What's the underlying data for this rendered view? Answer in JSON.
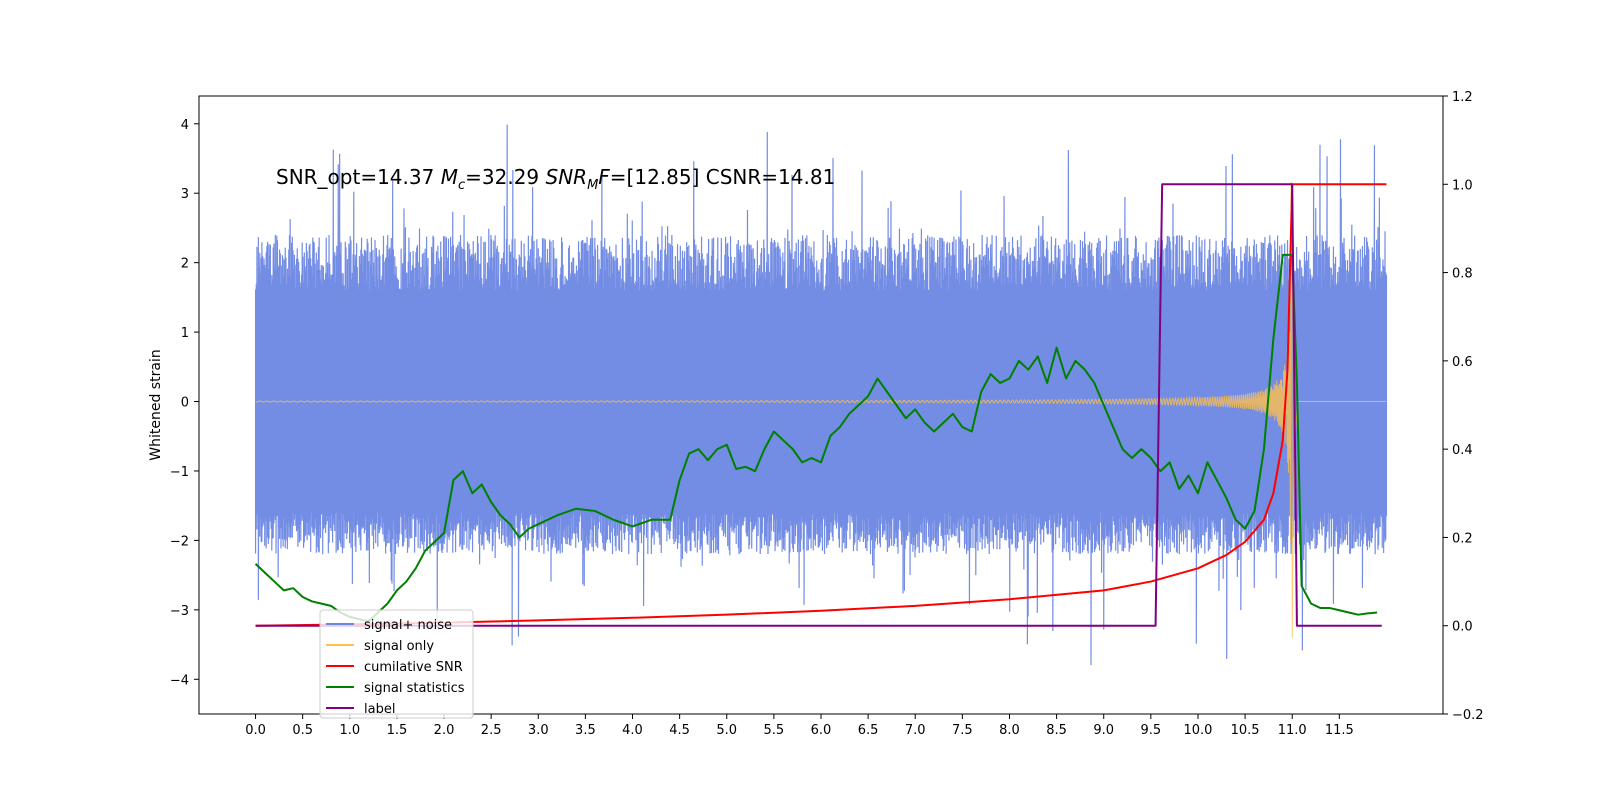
{
  "chart_data": {
    "type": "line",
    "title": "",
    "annotation": {
      "parts": [
        {
          "text": "SNR_opt=14.37 ",
          "italic": false
        },
        {
          "text": "M",
          "italic": true
        },
        {
          "text": "c",
          "italic": true,
          "sub": true
        },
        {
          "text": "=32.29  ",
          "italic": false
        },
        {
          "text": "SNR",
          "italic": true
        },
        {
          "text": "M",
          "italic": true,
          "sub": true
        },
        {
          "text": "F",
          "italic": true
        },
        {
          "text": "=[12.85] CSNR=14.81",
          "italic": false
        }
      ]
    },
    "xlabel": "",
    "ylabel": "Whitened strain",
    "xlim": [
      -0.6,
      12.6
    ],
    "ylim": [
      -4.5,
      4.4
    ],
    "y2lim": [
      -0.2,
      1.2
    ],
    "x_ticks": [
      "0.0",
      "0.5",
      "1.0",
      "1.5",
      "2.0",
      "2.5",
      "3.0",
      "3.5",
      "4.0",
      "4.5",
      "5.0",
      "5.5",
      "6.0",
      "6.5",
      "7.0",
      "7.5",
      "8.0",
      "8.5",
      "9.0",
      "9.5",
      "10.0",
      "10.5",
      "11.0",
      "11.5"
    ],
    "y_ticks": [
      "4",
      "3",
      "2",
      "1",
      "0",
      "−1",
      "−2",
      "−3",
      "−4"
    ],
    "y2_ticks": [
      "1.2",
      "1.0",
      "0.8",
      "0.6",
      "0.4",
      "0.2",
      "0.0",
      "−0.2"
    ],
    "grid": false,
    "legend_position": "lower-left",
    "legend": [
      {
        "label": "signal+ noise",
        "color": "#6b86e3"
      },
      {
        "label": "signal only",
        "color": "#ffc04d"
      },
      {
        "label": "cumilative SNR",
        "color": "#ff0000"
      },
      {
        "label": "signal statistics",
        "color": "#008000"
      },
      {
        "label": "label",
        "color": "#800080"
      }
    ],
    "series": [
      {
        "name": "signal+ noise",
        "axis": "left",
        "color": "#6b86e3",
        "noise": {
          "t_start": 0.0,
          "t_end": 12.0,
          "band_min": [
            -2.2,
            -1.6
          ],
          "band_max": [
            1.6,
            2.4
          ],
          "peak_max": 4.0,
          "peak_min": -3.8
        }
      },
      {
        "name": "signal only",
        "axis": "left",
        "color": "#ffc04d",
        "chirp": {
          "t_start": 0.0,
          "t_end": 12.0,
          "t_merge": 11.0,
          "peak_amplitude": 3.4
        }
      },
      {
        "name": "cumilative SNR",
        "axis": "right",
        "color": "#ff0000",
        "x": [
          0.0,
          1.0,
          2.0,
          3.0,
          4.0,
          5.0,
          6.0,
          7.0,
          8.0,
          9.0,
          9.5,
          10.0,
          10.3,
          10.5,
          10.7,
          10.8,
          10.9,
          10.95,
          11.0,
          12.0
        ],
        "y": [
          0.0,
          0.003,
          0.007,
          0.012,
          0.018,
          0.025,
          0.034,
          0.045,
          0.06,
          0.08,
          0.1,
          0.13,
          0.16,
          0.19,
          0.24,
          0.3,
          0.42,
          0.58,
          1.0,
          1.0
        ]
      },
      {
        "name": "signal statistics",
        "axis": "right",
        "color": "#008000",
        "x": [
          0.0,
          0.1,
          0.2,
          0.3,
          0.4,
          0.5,
          0.6,
          0.7,
          0.8,
          0.9,
          1.0,
          1.1,
          1.2,
          1.3,
          1.4,
          1.5,
          1.6,
          1.7,
          1.8,
          1.9,
          2.0,
          2.1,
          2.2,
          2.3,
          2.4,
          2.5,
          2.6,
          2.7,
          2.8,
          2.9,
          3.0,
          3.2,
          3.4,
          3.6,
          3.8,
          4.0,
          4.2,
          4.4,
          4.5,
          4.6,
          4.7,
          4.8,
          4.9,
          5.0,
          5.1,
          5.2,
          5.3,
          5.4,
          5.5,
          5.6,
          5.7,
          5.8,
          5.9,
          6.0,
          6.1,
          6.2,
          6.3,
          6.4,
          6.5,
          6.6,
          6.7,
          6.8,
          6.9,
          7.0,
          7.1,
          7.2,
          7.3,
          7.4,
          7.5,
          7.6,
          7.7,
          7.8,
          7.9,
          8.0,
          8.1,
          8.2,
          8.3,
          8.4,
          8.5,
          8.6,
          8.7,
          8.8,
          8.9,
          9.0,
          9.1,
          9.2,
          9.3,
          9.4,
          9.5,
          9.6,
          9.7,
          9.8,
          9.9,
          10.0,
          10.1,
          10.2,
          10.3,
          10.4,
          10.5,
          10.6,
          10.7,
          10.8,
          10.9,
          11.0,
          11.05,
          11.1,
          11.2,
          11.3,
          11.4,
          11.5,
          11.6,
          11.7,
          11.8,
          11.9
        ],
        "y": [
          0.14,
          0.12,
          0.1,
          0.08,
          0.085,
          0.065,
          0.055,
          0.05,
          0.045,
          0.03,
          0.02,
          0.015,
          0.01,
          0.03,
          0.05,
          0.08,
          0.1,
          0.13,
          0.17,
          0.19,
          0.21,
          0.33,
          0.35,
          0.3,
          0.32,
          0.28,
          0.25,
          0.23,
          0.2,
          0.22,
          0.23,
          0.25,
          0.265,
          0.26,
          0.24,
          0.225,
          0.24,
          0.24,
          0.33,
          0.39,
          0.4,
          0.375,
          0.4,
          0.41,
          0.355,
          0.36,
          0.35,
          0.4,
          0.44,
          0.42,
          0.4,
          0.37,
          0.38,
          0.37,
          0.43,
          0.45,
          0.48,
          0.5,
          0.52,
          0.56,
          0.53,
          0.5,
          0.47,
          0.49,
          0.46,
          0.44,
          0.46,
          0.48,
          0.45,
          0.44,
          0.53,
          0.57,
          0.55,
          0.56,
          0.6,
          0.58,
          0.61,
          0.55,
          0.63,
          0.56,
          0.6,
          0.58,
          0.55,
          0.5,
          0.45,
          0.4,
          0.38,
          0.4,
          0.38,
          0.35,
          0.37,
          0.31,
          0.34,
          0.3,
          0.37,
          0.33,
          0.29,
          0.24,
          0.22,
          0.26,
          0.4,
          0.65,
          0.84,
          0.84,
          0.55,
          0.09,
          0.05,
          0.04,
          0.04,
          0.035,
          0.03,
          0.025,
          0.028,
          0.03
        ],
        "smooth": false
      },
      {
        "name": "label",
        "axis": "right",
        "color": "#800080",
        "x": [
          0.0,
          9.55,
          9.62,
          11.0,
          11.05,
          11.95
        ],
        "y": [
          0.0,
          0.0,
          1.0,
          1.0,
          0.0,
          0.0
        ]
      }
    ]
  }
}
